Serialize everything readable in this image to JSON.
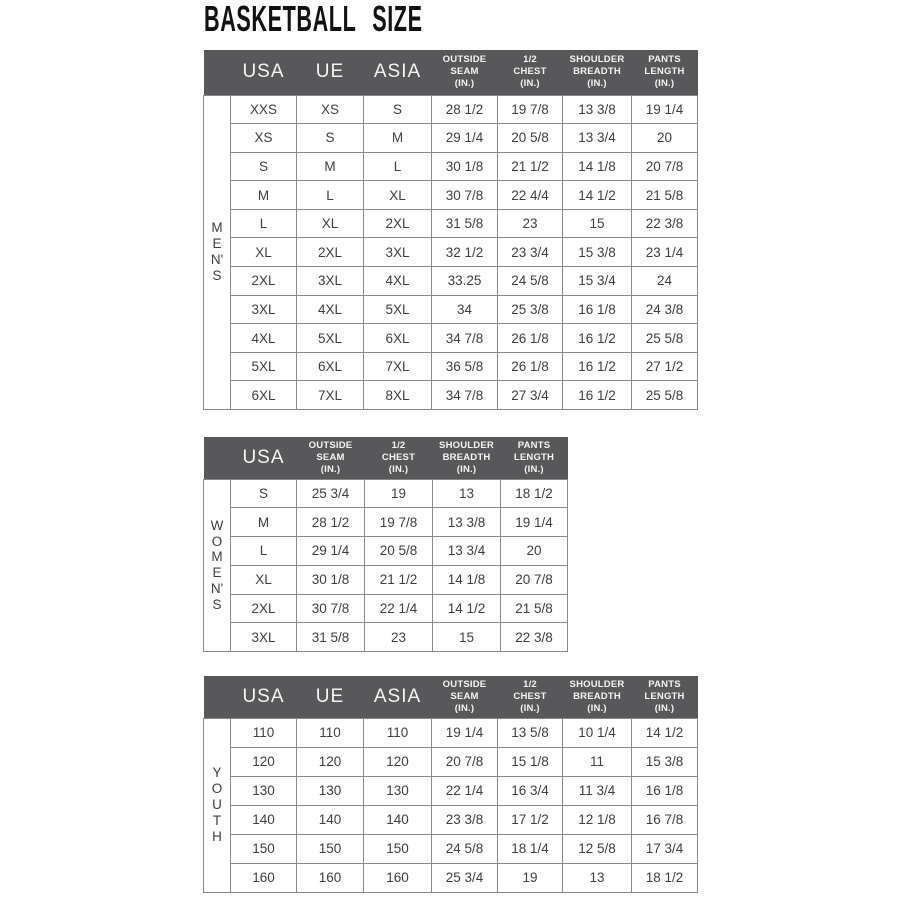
{
  "page": {
    "title": "BASKETBALL SIZE"
  },
  "colors": {
    "header_bg": "#58585a",
    "header_text": "#f4f4f4",
    "body_text": "#3f3f41",
    "border": "#8a8a8a",
    "title": "#121212",
    "background": "#ffffff"
  },
  "chart_data": [
    {
      "type": "table",
      "id": "mens",
      "group_label": "MEN'S",
      "group_label_stacked": "M\nE\nN'\nS",
      "columns": [
        {
          "label": "USA",
          "size": "lg"
        },
        {
          "label": "UE",
          "size": "lg"
        },
        {
          "label": "ASIA",
          "size": "lg"
        },
        {
          "label": "OUTSIDE\nSEAM\n(IN.)",
          "size": "sm"
        },
        {
          "label": "1/2\nCHEST\n(IN.)",
          "size": "sm"
        },
        {
          "label": "SHOULDER\nBREADTH\n(IN.)",
          "size": "sm"
        },
        {
          "label": "PANTS\nLENGTH\n(IN.)",
          "size": "sm"
        }
      ],
      "rows": [
        [
          "XXS",
          "XS",
          "S",
          "28 1/2",
          "19 7/8",
          "13 3/8",
          "19 1/4"
        ],
        [
          "XS",
          "S",
          "M",
          "29 1/4",
          "20 5/8",
          "13 3/4",
          "20"
        ],
        [
          "S",
          "M",
          "L",
          "30 1/8",
          "21 1/2",
          "14 1/8",
          "20 7/8"
        ],
        [
          "M",
          "L",
          "XL",
          "30 7/8",
          "22 4/4",
          "14 1/2",
          "21 5/8"
        ],
        [
          "L",
          "XL",
          "2XL",
          "31 5/8",
          "23",
          "15",
          "22 3/8"
        ],
        [
          "XL",
          "2XL",
          "3XL",
          "32 1/2",
          "23 3/4",
          "15 3/8",
          "23 1/4"
        ],
        [
          "2XL",
          "3XL",
          "4XL",
          "33.25",
          "24 5/8",
          "15 3/4",
          "24"
        ],
        [
          "3XL",
          "4XL",
          "5XL",
          "34",
          "25 3/8",
          "16 1/8",
          "24 3/8"
        ],
        [
          "4XL",
          "5XL",
          "6XL",
          "34 7/8",
          "26 1/8",
          "16 1/2",
          "25 5/8"
        ],
        [
          "5XL",
          "6XL",
          "7XL",
          "36 5/8",
          "26 1/8",
          "16 1/2",
          "27 1/2"
        ],
        [
          "6XL",
          "7XL",
          "8XL",
          "34 7/8",
          "27 3/4",
          "16 1/2",
          "25 5/8"
        ]
      ]
    },
    {
      "type": "table",
      "id": "womens",
      "group_label": "WOMEN'S",
      "group_label_stacked": "W\nO\nM\nE\nN'\nS",
      "columns": [
        {
          "label": "USA",
          "size": "lg"
        },
        {
          "label": "OUTSIDE\nSEAM\n(IN.)",
          "size": "sm"
        },
        {
          "label": "1/2\nCHEST\n(IN.)",
          "size": "sm"
        },
        {
          "label": "SHOULDER\nBREADTH\n(IN.)",
          "size": "sm"
        },
        {
          "label": "PANTS\nLENGTH\n(IN.)",
          "size": "sm"
        }
      ],
      "rows": [
        [
          "S",
          "25 3/4",
          "19",
          "13",
          "18 1/2"
        ],
        [
          "M",
          "28 1/2",
          "19 7/8",
          "13 3/8",
          "19 1/4"
        ],
        [
          "L",
          "29 1/4",
          "20 5/8",
          "13 3/4",
          "20"
        ],
        [
          "XL",
          "30 1/8",
          "21 1/2",
          "14 1/8",
          "20 7/8"
        ],
        [
          "2XL",
          "30 7/8",
          "22 1/4",
          "14 1/2",
          "21 5/8"
        ],
        [
          "3XL",
          "31 5/8",
          "23",
          "15",
          "22 3/8"
        ]
      ]
    },
    {
      "type": "table",
      "id": "youth",
      "group_label": "YOUTH",
      "group_label_stacked": "Y\nO\nU\nT\nH",
      "columns": [
        {
          "label": "USA",
          "size": "lg"
        },
        {
          "label": "UE",
          "size": "lg"
        },
        {
          "label": "ASIA",
          "size": "lg"
        },
        {
          "label": "OUTSIDE\nSEAM\n(IN.)",
          "size": "sm"
        },
        {
          "label": "1/2\nCHEST\n(IN.)",
          "size": "sm"
        },
        {
          "label": "SHOULDER\nBREADTH\n(IN.)",
          "size": "sm"
        },
        {
          "label": "PANTS\nLENGTH\n(IN.)",
          "size": "sm"
        }
      ],
      "rows": [
        [
          "110",
          "110",
          "110",
          "19 1/4",
          "13 5/8",
          "10 1/4",
          "14 1/2"
        ],
        [
          "120",
          "120",
          "120",
          "20 7/8",
          "15 1/8",
          "11",
          "15 3/8"
        ],
        [
          "130",
          "130",
          "130",
          "22 1/4",
          "16 3/4",
          "11 3/4",
          "16 1/8"
        ],
        [
          "140",
          "140",
          "140",
          "23 3/8",
          "17 1/2",
          "12 1/8",
          "16 7/8"
        ],
        [
          "150",
          "150",
          "150",
          "24 5/8",
          "18 1/4",
          "12 5/8",
          "17 3/4"
        ],
        [
          "160",
          "160",
          "160",
          "25 3/4",
          "19",
          "13",
          "18 1/2"
        ]
      ]
    }
  ]
}
